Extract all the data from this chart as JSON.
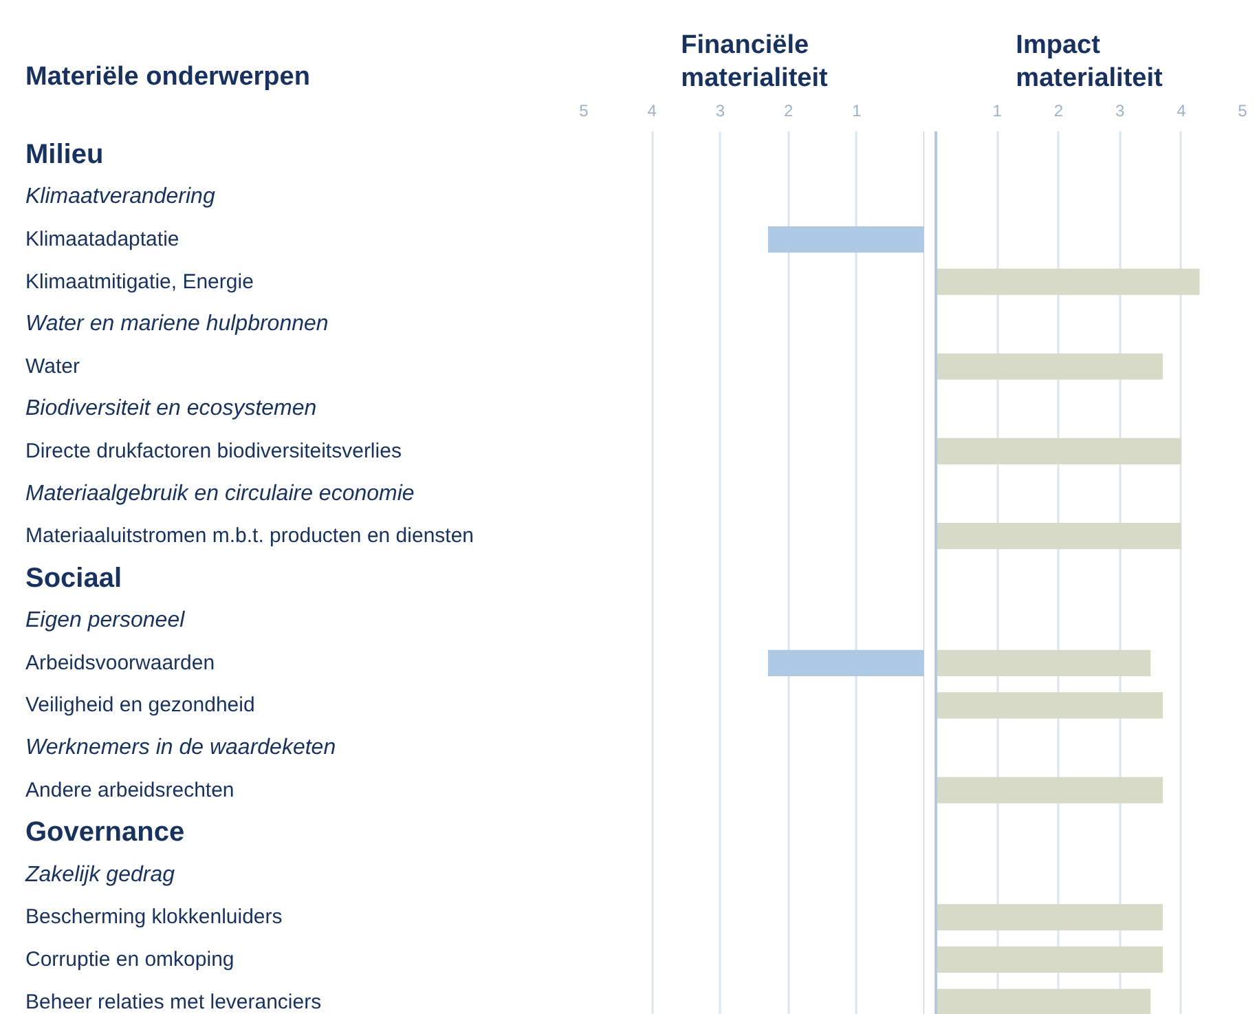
{
  "chart_data": [
    {
      "type": "bar",
      "orientation": "horizontal",
      "title": "Financiële materialiteit",
      "ylabel": "Materiële onderwerpen",
      "categories": [
        "Milieu",
        "Klimaatverandering",
        "Klimaatadaptatie",
        "Klimaatmitigatie, Energie",
        "Water en mariene hulpbronnen",
        "Water",
        "Biodiversiteit en ecosystemen",
        "Directe drukfactoren biodiversiteitsverlies",
        "Materiaalgebruik en circulaire economie",
        "Materiaaluitstromen m.b.t. producten en diensten",
        "Sociaal",
        "Eigen personeel",
        "Arbeidsvoorwaarden",
        "Veiligheid en gezondheid",
        "Werknemers in de waardeketen",
        "Andere arbeidsrechten",
        "Governance",
        "Zakelijk gedrag",
        "Bescherming klokkenluiders",
        "Corruptie en omkoping",
        "Beheer relaties met leveranciers"
      ],
      "values": [
        null,
        null,
        2.3,
        null,
        null,
        null,
        null,
        null,
        null,
        null,
        null,
        null,
        2.3,
        null,
        null,
        null,
        null,
        null,
        null,
        null,
        null
      ],
      "color": "#adc9e6",
      "xlim": [
        5,
        0
      ],
      "xticks": [
        5,
        4,
        3,
        2,
        1
      ],
      "grid": "x"
    },
    {
      "type": "bar",
      "orientation": "horizontal",
      "title": "Impact materialiteit",
      "categories": [
        "Milieu",
        "Klimaatverandering",
        "Klimaatadaptatie",
        "Klimaatmitigatie, Energie",
        "Water en mariene hulpbronnen",
        "Water",
        "Biodiversiteit en ecosystemen",
        "Directe drukfactoren biodiversiteitsverlies",
        "Materiaalgebruik en circulaire economie",
        "Materiaaluitstromen m.b.t. producten en diensten",
        "Sociaal",
        "Eigen personeel",
        "Arbeidsvoorwaarden",
        "Veiligheid en gezondheid",
        "Werknemers in de waardeketen",
        "Andere arbeidsrechten",
        "Governance",
        "Zakelijk gedrag",
        "Bescherming klokkenluiders",
        "Corruptie en omkoping",
        "Beheer relaties met leveranciers"
      ],
      "values": [
        null,
        null,
        null,
        4.3,
        null,
        3.7,
        null,
        4.0,
        null,
        4.0,
        null,
        null,
        3.5,
        3.7,
        null,
        3.7,
        null,
        null,
        3.7,
        3.7,
        3.5
      ],
      "color": "#d7dac7",
      "xlim": [
        0,
        5
      ],
      "xticks": [
        1,
        2,
        3,
        4,
        5
      ],
      "grid": "x",
      "tick_labels": "x"
    }
  ]
}
